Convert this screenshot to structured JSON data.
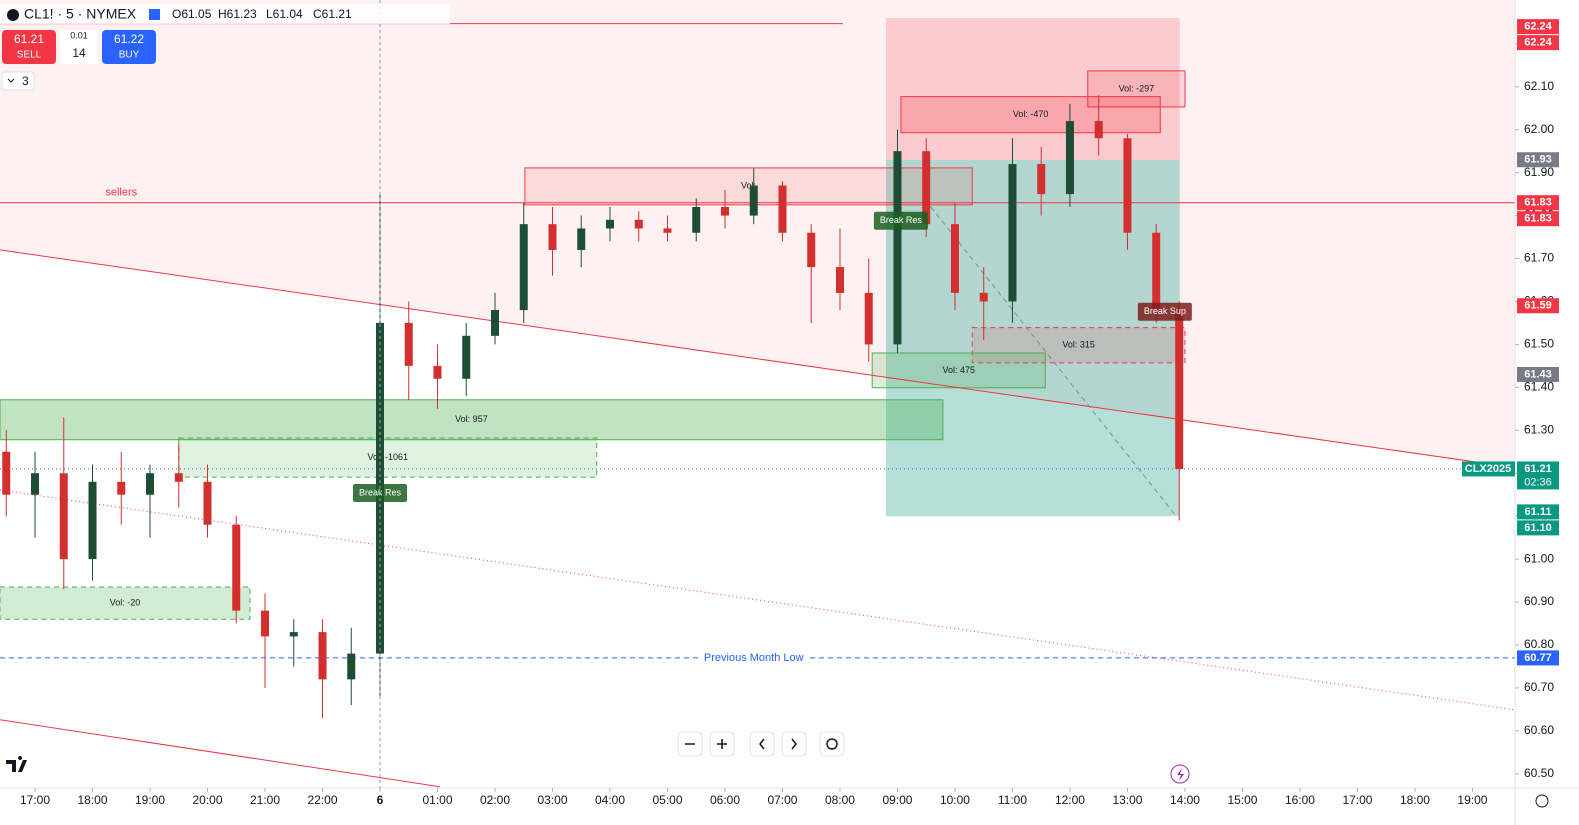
{
  "header": {
    "symbol": "CL1! · 5 · NYMEX",
    "ohlc": [
      "O61.05",
      "H61.23",
      "L61.04",
      "C61.21"
    ]
  },
  "trade": {
    "sell_price": "61.21",
    "sell": "SELL",
    "qty_step": "0.01",
    "qty": "14",
    "buy_price": "61.22",
    "buy": "BUY"
  },
  "indicators_count": "3",
  "chart_data": {
    "type": "candlestick",
    "xlim": [
      -0.609,
      25.74
    ],
    "xticks": [
      {
        "value": 0,
        "label": "17:00"
      },
      {
        "value": 1,
        "label": "18:00"
      },
      {
        "value": 2,
        "label": "19:00"
      },
      {
        "value": 3,
        "label": "20:00"
      },
      {
        "value": 4,
        "label": "21:00"
      },
      {
        "value": 5,
        "label": "22:00"
      },
      {
        "value": 6,
        "label": "6"
      },
      {
        "value": 7,
        "label": "01:00"
      },
      {
        "value": 8,
        "label": "02:00"
      },
      {
        "value": 9,
        "label": "03:00"
      },
      {
        "value": 10,
        "label": "04:00"
      },
      {
        "value": 11,
        "label": "05:00"
      },
      {
        "value": 12,
        "label": "06:00"
      },
      {
        "value": 13,
        "label": "07:00"
      },
      {
        "value": 14,
        "label": "08:00"
      },
      {
        "value": 15,
        "label": "09:00"
      },
      {
        "value": 16,
        "label": "10:00"
      },
      {
        "value": 17,
        "label": "11:00"
      },
      {
        "value": 18,
        "label": "12:00"
      },
      {
        "value": 19,
        "label": "13:00"
      },
      {
        "value": 20,
        "label": "14:00"
      },
      {
        "value": 21,
        "label": "15:00"
      },
      {
        "value": 22,
        "label": "16:00"
      },
      {
        "value": 23,
        "label": "17:00"
      },
      {
        "value": 24,
        "label": "18:00"
      },
      {
        "value": 25,
        "label": "19:00"
      }
    ],
    "ylim": [
      60.467,
      62.302
    ],
    "yticks": [
      {
        "value": 60.5,
        "label": "60.50"
      },
      {
        "value": 60.6,
        "label": "60.60"
      },
      {
        "value": 60.7,
        "label": "60.70"
      },
      {
        "value": 60.8,
        "label": "60.80"
      },
      {
        "value": 60.9,
        "label": "60.90"
      },
      {
        "value": 61,
        "label": "61.00"
      },
      {
        "value": 61.1,
        "label": "61.10"
      },
      {
        "value": 61.2,
        "label": "61.20"
      },
      {
        "value": 61.3,
        "label": "61.30"
      },
      {
        "value": 61.4,
        "label": "61.40"
      },
      {
        "value": 61.5,
        "label": "61.50"
      },
      {
        "value": 61.6,
        "label": "61.60"
      },
      {
        "value": 61.7,
        "label": "61.70"
      },
      {
        "value": 61.8,
        "label": "61.80"
      },
      {
        "value": 61.9,
        "label": "61.90"
      },
      {
        "value": 62,
        "label": "62.00"
      },
      {
        "value": 62.1,
        "label": "62.10"
      },
      {
        "value": 62.2,
        "label": "62.20"
      }
    ],
    "up_color": "#1e4d36",
    "down_color": "#d32f2f",
    "x": [
      -0.5,
      0,
      0.5,
      1,
      1.5,
      2,
      2.5,
      3,
      3.5,
      4,
      4.5,
      5,
      5.5,
      6,
      6.5,
      7,
      7.5,
      8,
      8.5,
      9,
      9.5,
      10,
      10.5,
      11,
      11.5,
      12,
      12.5,
      13,
      13.5,
      14,
      14.5,
      15,
      15.5,
      16,
      16.5,
      17,
      17.5,
      18,
      18.5,
      19,
      19.5,
      19.9
    ],
    "open": [
      61.25,
      61.15,
      61.2,
      61.0,
      61.18,
      61.15,
      61.2,
      61.18,
      61.08,
      60.88,
      60.82,
      60.83,
      60.72,
      60.78,
      61.55,
      61.45,
      61.42,
      61.52,
      61.58,
      61.78,
      61.72,
      61.77,
      61.79,
      61.77,
      61.76,
      61.82,
      61.8,
      61.87,
      61.76,
      61.68,
      61.62,
      61.5,
      61.95,
      61.78,
      61.62,
      61.6,
      61.92,
      61.85,
      62.02,
      61.98,
      61.76,
      61.58
    ],
    "high": [
      61.3,
      61.25,
      61.33,
      61.22,
      61.25,
      61.22,
      61.27,
      61.22,
      61.1,
      60.92,
      60.86,
      60.86,
      60.84,
      61.85,
      61.6,
      61.5,
      61.55,
      61.62,
      61.83,
      61.82,
      61.8,
      61.82,
      61.81,
      61.8,
      61.84,
      61.86,
      61.91,
      61.88,
      61.78,
      61.77,
      61.7,
      62.0,
      61.98,
      61.83,
      61.68,
      61.98,
      61.96,
      62.06,
      62.08,
      61.99,
      61.78,
      61.6
    ],
    "low": [
      61.1,
      61.05,
      60.93,
      60.95,
      61.08,
      61.05,
      61.12,
      61.05,
      60.85,
      60.7,
      60.75,
      60.63,
      60.66,
      60.68,
      61.37,
      61.35,
      61.38,
      61.5,
      61.55,
      61.66,
      61.68,
      61.74,
      61.74,
      61.74,
      61.74,
      61.77,
      61.78,
      61.74,
      61.55,
      61.58,
      61.46,
      61.48,
      61.75,
      61.58,
      61.51,
      61.55,
      61.8,
      61.82,
      61.94,
      61.72,
      61.55,
      61.09
    ],
    "close": [
      61.15,
      61.2,
      61.0,
      61.18,
      61.15,
      61.2,
      61.18,
      61.08,
      60.88,
      60.82,
      60.83,
      60.72,
      60.78,
      61.55,
      61.45,
      61.42,
      61.52,
      61.58,
      61.78,
      61.72,
      61.77,
      61.79,
      61.77,
      61.76,
      61.82,
      61.8,
      61.87,
      61.76,
      61.68,
      61.62,
      61.5,
      61.95,
      61.78,
      61.62,
      61.6,
      61.92,
      61.85,
      62.02,
      61.98,
      61.76,
      61.58,
      61.21
    ],
    "trend_lines": [
      {
        "x": [
          -0.609,
          25.74
        ],
        "y": [
          61.72,
          61.213
        ],
        "color": "#f23645",
        "style": "solid"
      },
      {
        "x": [
          -0.609,
          25.74
        ],
        "y": [
          61.161,
          60.649
        ],
        "color": "#f23645",
        "style": "dotted"
      },
      {
        "x": [
          -0.609,
          7.04
        ],
        "y": [
          60.626,
          60.47
        ],
        "color": "#f23645",
        "style": "solid"
      },
      {
        "x": [
          15.48,
          19.83
        ],
        "y": [
          61.837,
          61.103
        ],
        "color": "#8a8a8a",
        "style": "dashed"
      },
      {
        "x": [
          -0.609,
          14.05
        ],
        "y": [
          62.247,
          62.247
        ],
        "color": "#f23645",
        "style": "solid"
      }
    ],
    "zones": [
      {
        "x": [
          14.8,
          19.91
        ],
        "y": [
          62.26,
          61.93
        ],
        "fill": "rgba(242,54,69,0.2)",
        "stroke": "none"
      },
      {
        "x": [
          14.8,
          19.91
        ],
        "y": [
          61.93,
          61.1
        ],
        "fill": "rgba(8,153,129,0.3)",
        "stroke": "none"
      },
      {
        "x": [
          15.06,
          19.57
        ],
        "y": [
          62.077,
          61.993
        ],
        "fill": "rgba(242,54,69,0.25)",
        "stroke": "#f23645",
        "label": "Vol: -470"
      },
      {
        "x": [
          18.31,
          20.0
        ],
        "y": [
          62.137,
          62.053
        ],
        "fill": "rgba(242,54,69,0.15)",
        "stroke": "#f23645",
        "label": "Vol: -297"
      },
      {
        "x": [
          8.52,
          16.3
        ],
        "y": [
          61.911,
          61.825
        ],
        "fill": "rgba(242,54,69,0.12)",
        "stroke": "#f23645",
        "label": "Vol:"
      },
      {
        "x": [
          16.3,
          20.0
        ],
        "y": [
          61.539,
          61.457
        ],
        "fill": "rgba(242,54,69,0.15)",
        "stroke": "#f23645",
        "dashed": true,
        "label": "Vol: 315"
      },
      {
        "x": [
          14.56,
          17.57
        ],
        "y": [
          61.48,
          61.399
        ],
        "fill": "rgba(76,175,80,0.2)",
        "stroke": "#4caf50",
        "label": "Vol: 475"
      },
      {
        "x": [
          -0.609,
          15.79
        ],
        "y": [
          61.371,
          61.278
        ],
        "fill": "rgba(76,175,80,0.35)",
        "stroke": "#4caf50",
        "label": "Vol: 957"
      },
      {
        "x": [
          2.5,
          9.77
        ],
        "y": [
          61.282,
          61.191
        ],
        "fill": "rgba(76,175,80,0.18)",
        "stroke": "#4caf50",
        "dashed": true,
        "label": "Vol: -1061"
      },
      {
        "x": [
          -0.609,
          3.74
        ],
        "y": [
          60.935,
          60.86
        ],
        "fill": "rgba(76,175,80,0.25)",
        "stroke": "#4caf50",
        "dashed": true,
        "label": "Vol: -20"
      }
    ],
    "hlines": [
      {
        "price": 61.83,
        "label": "sellers",
        "color": "#f23645",
        "style": "solid",
        "label_x": 1.5
      },
      {
        "price": 60.77,
        "label": "Previous Month Low",
        "color": "#2962ff",
        "style": "dashed",
        "label_x": 12.5
      },
      {
        "price": 61.21,
        "color": "#2962ff",
        "style": "dotted"
      }
    ],
    "signals": [
      {
        "x": 6.0,
        "price": 61.154,
        "label": "Break Res",
        "color": "#1b5e20"
      },
      {
        "x": 15.06,
        "price": 61.788,
        "label": "Break Res",
        "color": "#1b5e20"
      },
      {
        "x": 19.65,
        "price": 61.576,
        "label": "Break Sup",
        "color": "#7f1d1d"
      }
    ],
    "price_labels": [
      {
        "value": 62.24,
        "label": "62.24",
        "color": "#f23645"
      },
      {
        "value": 62.24,
        "label": "62.24",
        "color": "#f23645"
      },
      {
        "value": 61.93,
        "label": "61.93",
        "color": "#787b86"
      },
      {
        "value": 61.83,
        "label": "61.83",
        "color": "#f23645"
      },
      {
        "value": 61.83,
        "label": "61.83",
        "color": "#f23645"
      },
      {
        "value": 61.59,
        "label": "61.59",
        "color": "#f23645"
      },
      {
        "value": 61.43,
        "label": "61.43",
        "color": "#787b86"
      },
      {
        "value": 61.21,
        "label": "61.21",
        "color": "#089981",
        "tag": "CLX2025",
        "sub": "02:36"
      },
      {
        "value": 61.11,
        "label": "61.11",
        "color": "#089981"
      },
      {
        "value": 61.1,
        "label": "61.10",
        "color": "#089981"
      },
      {
        "value": 60.77,
        "label": "60.77",
        "color": "#2962ff"
      }
    ]
  }
}
